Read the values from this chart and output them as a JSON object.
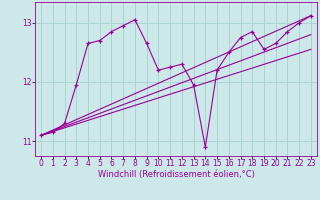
{
  "xlabel": "Windchill (Refroidissement éolien,°C)",
  "bg_color": "#cce8e8",
  "line_color": "#990099",
  "grid_color": "#aad4d4",
  "xlim": [
    -0.5,
    23.5
  ],
  "ylim": [
    10.75,
    13.35
  ],
  "yticks": [
    11,
    12,
    13
  ],
  "xticks": [
    0,
    1,
    2,
    3,
    4,
    5,
    6,
    7,
    8,
    9,
    10,
    11,
    12,
    13,
    14,
    15,
    16,
    17,
    18,
    19,
    20,
    21,
    22,
    23
  ],
  "series1_x": [
    0,
    1,
    2,
    3,
    4,
    5,
    6,
    7,
    8,
    9,
    10,
    11,
    12,
    13,
    14,
    15,
    16,
    17,
    18,
    19,
    20,
    21,
    22,
    23
  ],
  "series1_y": [
    11.1,
    11.15,
    11.3,
    11.95,
    12.65,
    12.7,
    12.85,
    12.95,
    13.05,
    12.65,
    12.2,
    12.25,
    12.3,
    11.95,
    10.9,
    12.2,
    12.5,
    12.75,
    12.85,
    12.55,
    12.65,
    12.85,
    13.0,
    13.12
  ],
  "line1_x": [
    0,
    23
  ],
  "line1_y": [
    11.1,
    12.55
  ],
  "line2_x": [
    0,
    23
  ],
  "line2_y": [
    11.1,
    12.8
  ],
  "line3_x": [
    0,
    23
  ],
  "line3_y": [
    11.1,
    13.12
  ]
}
